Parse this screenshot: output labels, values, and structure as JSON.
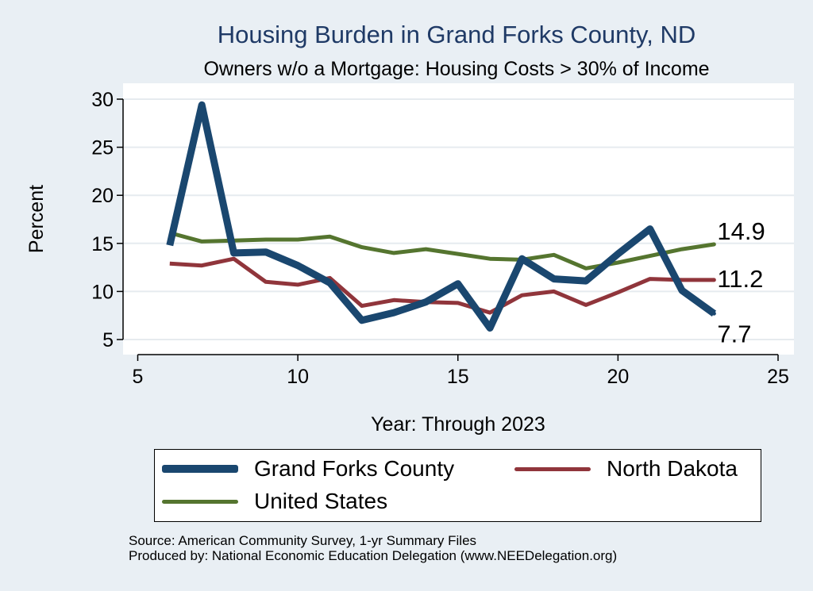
{
  "title": "Housing Burden in Grand Forks County, ND",
  "subtitle": "Owners w/o a Mortgage: Housing Costs > 30% of Income",
  "source_line1": "Source: American Community Survey, 1-yr Summary Files",
  "source_line2": "Produced by: National Economic Education Delegation (www.NEEDelegation.org)",
  "chart_data": {
    "type": "line",
    "xlabel": "Year: Through 2023",
    "ylabel": "Percent",
    "xlim": [
      5,
      25
    ],
    "ylim": [
      5,
      30
    ],
    "xticks": [
      5,
      10,
      15,
      20,
      25
    ],
    "yticks": [
      5,
      10,
      15,
      20,
      25,
      30
    ],
    "grid": true,
    "legend_position": "bottom",
    "x": [
      6,
      7,
      8,
      9,
      10,
      11,
      12,
      13,
      14,
      15,
      16,
      17,
      18,
      19,
      20,
      21,
      22,
      23
    ],
    "series": [
      {
        "name": "Grand Forks County",
        "color": "#1a476f",
        "values": [
          14.8,
          29.4,
          14.0,
          14.1,
          12.7,
          10.9,
          7.0,
          7.8,
          8.9,
          10.8,
          6.2,
          13.4,
          11.3,
          11.1,
          13.9,
          16.5,
          10.1,
          7.7
        ],
        "end_label": "7.7"
      },
      {
        "name": "North Dakota",
        "color": "#90353b",
        "values": [
          12.9,
          12.7,
          13.4,
          11.0,
          10.7,
          11.4,
          8.5,
          9.1,
          8.9,
          8.8,
          7.8,
          9.6,
          10.0,
          8.6,
          9.9,
          11.3,
          11.2,
          11.2
        ],
        "end_label": "11.2"
      },
      {
        "name": "United States",
        "color": "#55752f",
        "values": [
          16.1,
          15.2,
          15.3,
          15.4,
          15.4,
          15.7,
          14.6,
          14.0,
          14.4,
          13.9,
          13.4,
          13.3,
          13.8,
          12.4,
          13.0,
          13.7,
          14.4,
          14.9
        ],
        "end_label": "14.9"
      }
    ]
  },
  "legend": {
    "grand_forks": "Grand Forks County",
    "north_dakota": "North Dakota",
    "united_states": "United States"
  }
}
